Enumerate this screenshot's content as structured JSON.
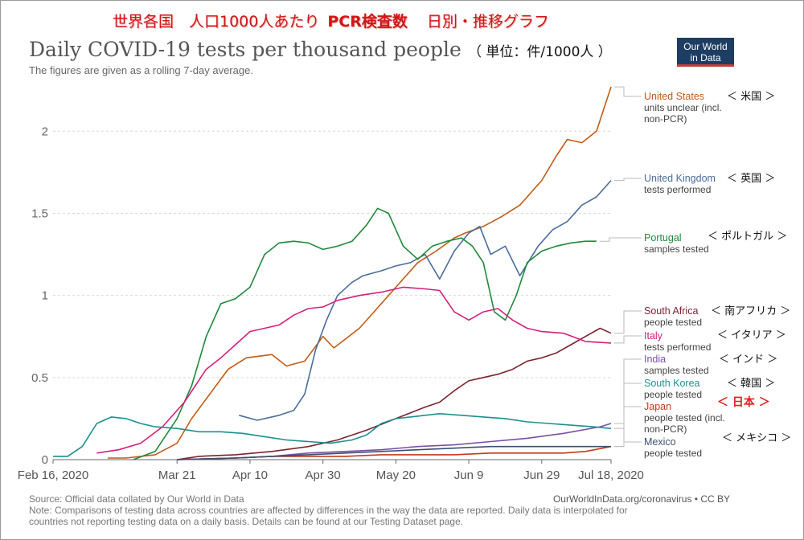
{
  "japanese_title": {
    "part1": "世界各国　人口1000人あたり",
    "part2": "PCR検査数",
    "part3": "日別・推移グラフ"
  },
  "unit_note": "（ 単位：件/1000人 ）",
  "logo": {
    "line1": "Our World",
    "line2": "in Data"
  },
  "footer": {
    "source": "Source: Official data collated by Our World in Data",
    "credit": "OurWorldInData.org/coronavirus • CC BY",
    "note1": "Note: Comparisons of testing data across countries are affected by differences in the way the data are reported. Daily data is interpolated for",
    "note2": "countries not reporting testing data on a daily basis. Details can be found at our Testing Dataset page."
  },
  "colors": {
    "United States": "#c55a11",
    "United Kingdom": "#4a6d9c",
    "Portugal": "#1e8a3a",
    "South Africa": "#7b2330",
    "Italy": "#d4207a",
    "India": "#7a4fa8",
    "South Korea": "#1a9090",
    "Japan": "#c33a1c",
    "Mexico": "#3c5070"
  },
  "chart_data": {
    "type": "line",
    "title": "Daily COVID-19 tests per thousand people",
    "subtitle": "The figures are given as a rolling 7-day average.",
    "xlabel": "",
    "ylabel": "",
    "x_ticks": [
      "Feb 16, 2020",
      "Mar 21",
      "Apr 10",
      "Apr 30",
      "May 20",
      "Jun 9",
      "Jun 29",
      "Jul 18, 2020"
    ],
    "x_tick_days": [
      0,
      34,
      54,
      74,
      94,
      114,
      134,
      153
    ],
    "x_range_days": [
      0,
      153
    ],
    "y_ticks": [
      "0",
      "0.5",
      "1",
      "1.5",
      "2"
    ],
    "y_tick_values": [
      0,
      0.5,
      1,
      1.5,
      2
    ],
    "ylim": [
      0,
      2.3
    ],
    "grid": "horizontal dashed",
    "x_values_are": "days since Feb 16, 2020",
    "series": [
      {
        "name": "United States",
        "detail1": "units unclear (incl.",
        "detail2": "non-PCR)",
        "jp": "＜ 米国 ＞",
        "points": [
          [
            15,
            0.01
          ],
          [
            20,
            0.01
          ],
          [
            28,
            0.03
          ],
          [
            34,
            0.1
          ],
          [
            38,
            0.25
          ],
          [
            43,
            0.4
          ],
          [
            48,
            0.55
          ],
          [
            53,
            0.62
          ],
          [
            60,
            0.64
          ],
          [
            64,
            0.57
          ],
          [
            69,
            0.6
          ],
          [
            74,
            0.75
          ],
          [
            77,
            0.68
          ],
          [
            84,
            0.8
          ],
          [
            88,
            0.9
          ],
          [
            94,
            1.05
          ],
          [
            100,
            1.2
          ],
          [
            105,
            1.27
          ],
          [
            110,
            1.35
          ],
          [
            113,
            1.38
          ],
          [
            118,
            1.42
          ],
          [
            123,
            1.48
          ],
          [
            128,
            1.55
          ],
          [
            134,
            1.7
          ],
          [
            138,
            1.85
          ],
          [
            141,
            1.95
          ],
          [
            145,
            1.93
          ],
          [
            149,
            2.0
          ],
          [
            153,
            2.27
          ]
        ]
      },
      {
        "name": "United Kingdom",
        "detail1": "tests performed",
        "detail2": "",
        "jp": "＜ 英国 ＞",
        "points": [
          [
            51,
            0.27
          ],
          [
            56,
            0.24
          ],
          [
            62,
            0.27
          ],
          [
            66,
            0.3
          ],
          [
            69,
            0.4
          ],
          [
            72,
            0.67
          ],
          [
            75,
            0.85
          ],
          [
            78,
            1.0
          ],
          [
            82,
            1.08
          ],
          [
            85,
            1.12
          ],
          [
            90,
            1.15
          ],
          [
            94,
            1.18
          ],
          [
            98,
            1.2
          ],
          [
            102,
            1.25
          ],
          [
            106,
            1.1
          ],
          [
            110,
            1.27
          ],
          [
            114,
            1.38
          ],
          [
            117,
            1.42
          ],
          [
            120,
            1.25
          ],
          [
            124,
            1.3
          ],
          [
            128,
            1.12
          ],
          [
            133,
            1.3
          ],
          [
            137,
            1.4
          ],
          [
            141,
            1.45
          ],
          [
            145,
            1.55
          ],
          [
            149,
            1.6
          ],
          [
            153,
            1.7
          ]
        ]
      },
      {
        "name": "Portugal",
        "detail1": "samples tested",
        "detail2": "",
        "jp": "＜ ポルトガル ＞",
        "points": [
          [
            22,
            0.0
          ],
          [
            28,
            0.05
          ],
          [
            34,
            0.25
          ],
          [
            38,
            0.45
          ],
          [
            42,
            0.75
          ],
          [
            46,
            0.95
          ],
          [
            50,
            0.98
          ],
          [
            54,
            1.05
          ],
          [
            58,
            1.25
          ],
          [
            62,
            1.32
          ],
          [
            66,
            1.33
          ],
          [
            70,
            1.32
          ],
          [
            74,
            1.28
          ],
          [
            78,
            1.3
          ],
          [
            82,
            1.33
          ],
          [
            86,
            1.43
          ],
          [
            89,
            1.53
          ],
          [
            92,
            1.5
          ],
          [
            96,
            1.3
          ],
          [
            100,
            1.22
          ],
          [
            104,
            1.3
          ],
          [
            108,
            1.33
          ],
          [
            112,
            1.35
          ],
          [
            115,
            1.3
          ],
          [
            118,
            1.2
          ],
          [
            121,
            0.9
          ],
          [
            124,
            0.85
          ],
          [
            127,
            1.0
          ],
          [
            130,
            1.2
          ],
          [
            134,
            1.27
          ],
          [
            138,
            1.3
          ],
          [
            142,
            1.32
          ],
          [
            146,
            1.33
          ],
          [
            149,
            1.33
          ]
        ]
      },
      {
        "name": "South Africa",
        "detail1": "people tested",
        "detail2": "",
        "jp": "＜ 南アフリカ ＞",
        "points": [
          [
            34,
            0.0
          ],
          [
            40,
            0.02
          ],
          [
            50,
            0.03
          ],
          [
            60,
            0.05
          ],
          [
            70,
            0.08
          ],
          [
            78,
            0.12
          ],
          [
            86,
            0.18
          ],
          [
            94,
            0.25
          ],
          [
            102,
            0.32
          ],
          [
            106,
            0.35
          ],
          [
            110,
            0.42
          ],
          [
            114,
            0.48
          ],
          [
            118,
            0.5
          ],
          [
            122,
            0.52
          ],
          [
            126,
            0.55
          ],
          [
            130,
            0.6
          ],
          [
            134,
            0.62
          ],
          [
            138,
            0.65
          ],
          [
            142,
            0.7
          ],
          [
            146,
            0.75
          ],
          [
            150,
            0.8
          ],
          [
            153,
            0.77
          ]
        ]
      },
      {
        "name": "Italy",
        "detail1": "tests performed",
        "detail2": "",
        "jp": "＜ イタリア ＞",
        "points": [
          [
            12,
            0.04
          ],
          [
            18,
            0.06
          ],
          [
            24,
            0.1
          ],
          [
            30,
            0.2
          ],
          [
            36,
            0.35
          ],
          [
            42,
            0.55
          ],
          [
            46,
            0.62
          ],
          [
            50,
            0.7
          ],
          [
            54,
            0.78
          ],
          [
            58,
            0.8
          ],
          [
            62,
            0.82
          ],
          [
            66,
            0.88
          ],
          [
            70,
            0.92
          ],
          [
            74,
            0.93
          ],
          [
            78,
            0.97
          ],
          [
            84,
            1.0
          ],
          [
            90,
            1.02
          ],
          [
            96,
            1.05
          ],
          [
            102,
            1.04
          ],
          [
            106,
            1.03
          ],
          [
            110,
            0.9
          ],
          [
            114,
            0.85
          ],
          [
            118,
            0.9
          ],
          [
            122,
            0.92
          ],
          [
            126,
            0.85
          ],
          [
            130,
            0.8
          ],
          [
            134,
            0.78
          ],
          [
            140,
            0.77
          ],
          [
            146,
            0.72
          ],
          [
            153,
            0.71
          ]
        ]
      },
      {
        "name": "India",
        "detail1": "samples tested",
        "detail2": "",
        "jp": "＜ インド ＞",
        "points": [
          [
            34,
            0.0
          ],
          [
            50,
            0.01
          ],
          [
            60,
            0.02
          ],
          [
            70,
            0.04
          ],
          [
            80,
            0.05
          ],
          [
            90,
            0.06
          ],
          [
            100,
            0.08
          ],
          [
            110,
            0.09
          ],
          [
            120,
            0.11
          ],
          [
            130,
            0.13
          ],
          [
            140,
            0.16
          ],
          [
            150,
            0.2
          ],
          [
            153,
            0.22
          ]
        ]
      },
      {
        "name": "South Korea",
        "detail1": "people tested",
        "detail2": "",
        "jp": "＜ 韓国 ＞",
        "points": [
          [
            0,
            0.02
          ],
          [
            4,
            0.02
          ],
          [
            8,
            0.08
          ],
          [
            12,
            0.22
          ],
          [
            16,
            0.26
          ],
          [
            20,
            0.25
          ],
          [
            24,
            0.22
          ],
          [
            28,
            0.2
          ],
          [
            34,
            0.19
          ],
          [
            40,
            0.17
          ],
          [
            46,
            0.17
          ],
          [
            52,
            0.16
          ],
          [
            58,
            0.14
          ],
          [
            64,
            0.12
          ],
          [
            70,
            0.11
          ],
          [
            76,
            0.1
          ],
          [
            82,
            0.12
          ],
          [
            86,
            0.15
          ],
          [
            90,
            0.22
          ],
          [
            94,
            0.25
          ],
          [
            98,
            0.26
          ],
          [
            102,
            0.27
          ],
          [
            106,
            0.28
          ],
          [
            112,
            0.27
          ],
          [
            118,
            0.26
          ],
          [
            124,
            0.25
          ],
          [
            130,
            0.23
          ],
          [
            136,
            0.22
          ],
          [
            142,
            0.21
          ],
          [
            148,
            0.2
          ],
          [
            153,
            0.19
          ]
        ]
      },
      {
        "name": "Japan",
        "detail1": "people tested (incl.",
        "detail2": "non-PCR)",
        "jp": "＜ 日本 ＞",
        "points": [
          [
            34,
            0.0
          ],
          [
            50,
            0.01
          ],
          [
            60,
            0.02
          ],
          [
            70,
            0.02
          ],
          [
            80,
            0.02
          ],
          [
            90,
            0.03
          ],
          [
            100,
            0.03
          ],
          [
            110,
            0.03
          ],
          [
            120,
            0.04
          ],
          [
            130,
            0.04
          ],
          [
            140,
            0.04
          ],
          [
            146,
            0.05
          ],
          [
            153,
            0.08
          ]
        ]
      },
      {
        "name": "Mexico",
        "detail1": "people tested",
        "detail2": "",
        "jp": "＜ メキシコ ＞",
        "points": [
          [
            34,
            0.0
          ],
          [
            50,
            0.01
          ],
          [
            60,
            0.02
          ],
          [
            70,
            0.03
          ],
          [
            80,
            0.04
          ],
          [
            90,
            0.05
          ],
          [
            100,
            0.06
          ],
          [
            110,
            0.07
          ],
          [
            120,
            0.08
          ],
          [
            130,
            0.08
          ],
          [
            140,
            0.08
          ],
          [
            148,
            0.08
          ],
          [
            153,
            0.08
          ]
        ]
      }
    ]
  }
}
